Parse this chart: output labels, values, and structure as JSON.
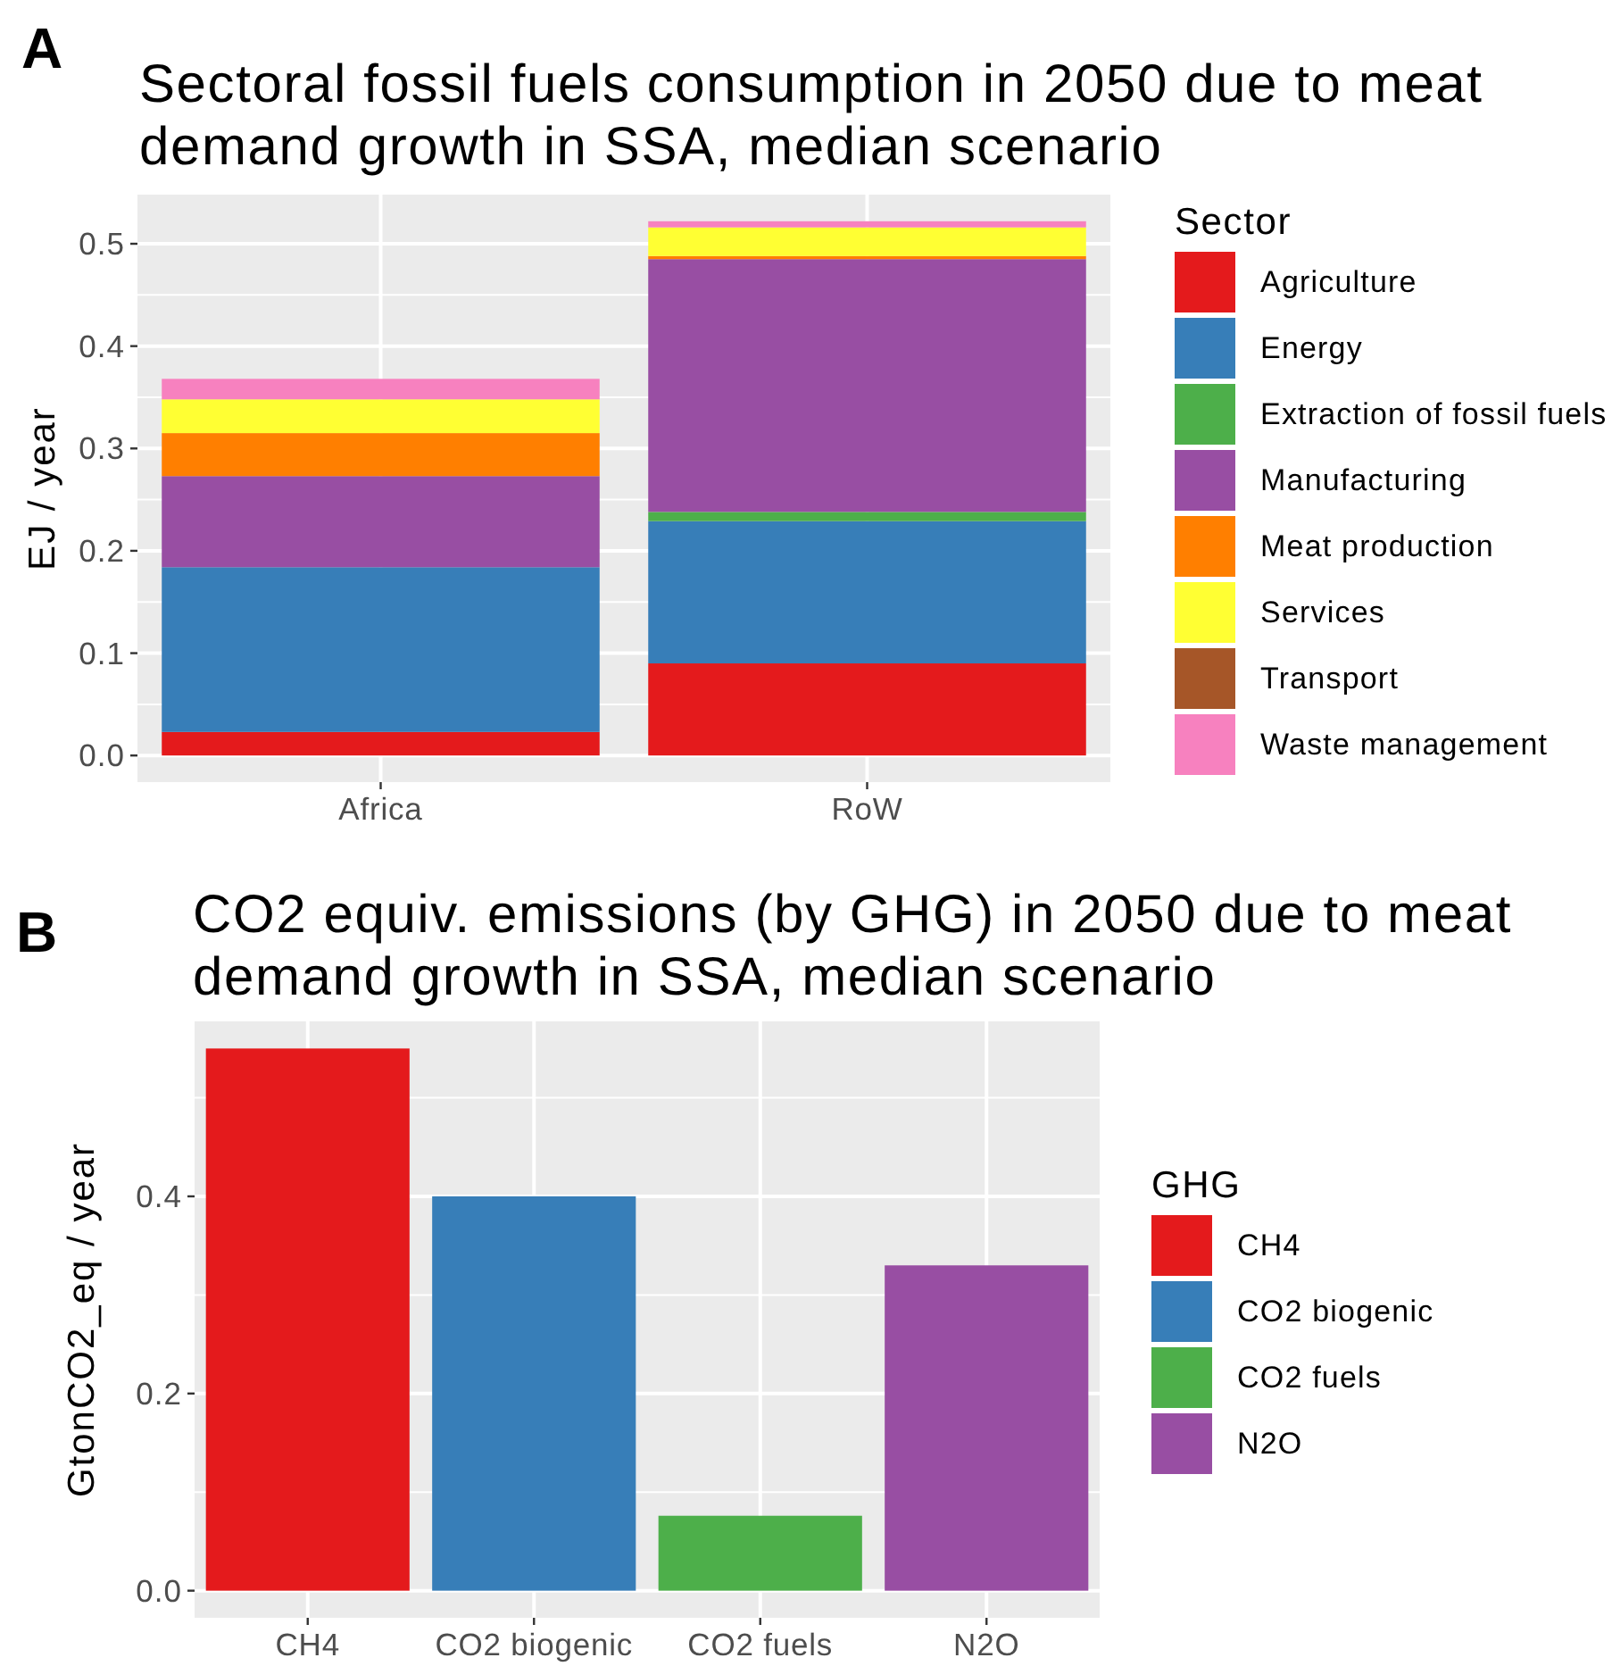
{
  "chart_data": [
    {
      "type": "bar",
      "title": "Sectoral fossil fuels consumption in 2050 due to meat demand growth in SSA, median scenario",
      "ylabel": "EJ / year",
      "legend_title": "Sector",
      "annotations": [
        "A"
      ],
      "categories": [
        "Africa",
        "RoW"
      ],
      "stacked": true,
      "series": [
        {
          "name": "Agriculture",
          "color": "#e41a1c",
          "values": [
            0.023,
            0.09
          ]
        },
        {
          "name": "Energy",
          "color": "#377eb8",
          "values": [
            0.161,
            0.139
          ]
        },
        {
          "name": "Extraction of fossil fuels",
          "color": "#4daf4a",
          "values": [
            0,
            0.009
          ]
        },
        {
          "name": "Manufacturing",
          "color": "#984ea3",
          "values": [
            0.089,
            0.247
          ]
        },
        {
          "name": "Meat production",
          "color": "#ff7f00",
          "values": [
            0.042,
            0.003
          ]
        },
        {
          "name": "Services",
          "color": "#ffff33",
          "values": [
            0.033,
            0.028
          ]
        },
        {
          "name": "Transport",
          "color": "#a65628",
          "values": [
            0,
            0
          ]
        },
        {
          "name": "Waste management",
          "color": "#f781bf",
          "values": [
            0.02,
            0.006
          ]
        }
      ],
      "ylim": [
        -0.026,
        0.548
      ],
      "yticks": [
        {
          "value": 0,
          "label": "0.0"
        },
        0.1,
        0.2,
        0.3,
        0.4,
        0.5
      ],
      "grid": true,
      "legend": "right"
    },
    {
      "type": "bar",
      "title": "CO2 equiv. emissions (by GHG) in 2050 due to meat demand growth in SSA, median scenario",
      "ylabel": "GtonCO2_eq / year",
      "legend_title": "GHG",
      "annotations": [
        "B"
      ],
      "categories": [
        "CH4",
        "CO2 biogenic",
        "CO2 fuels",
        "N2O"
      ],
      "stacked": true,
      "series": [
        {
          "name": "CH4",
          "color": "#e41a1c",
          "values": [
            0.55,
            null,
            null,
            null
          ]
        },
        {
          "name": "CO2 biogenic",
          "color": "#377eb8",
          "values": [
            null,
            0.4,
            null,
            null
          ]
        },
        {
          "name": "CO2 fuels",
          "color": "#4daf4a",
          "values": [
            null,
            null,
            0.076,
            null
          ]
        },
        {
          "name": "N2O",
          "color": "#984ea3",
          "values": [
            null,
            null,
            null,
            0.33
          ]
        }
      ],
      "ylim": [
        -0.0275,
        0.5775
      ],
      "yticks": [
        {
          "value": 0,
          "label": "0.0"
        },
        0.2,
        0.4
      ],
      "grid": true,
      "legend": "right"
    }
  ]
}
